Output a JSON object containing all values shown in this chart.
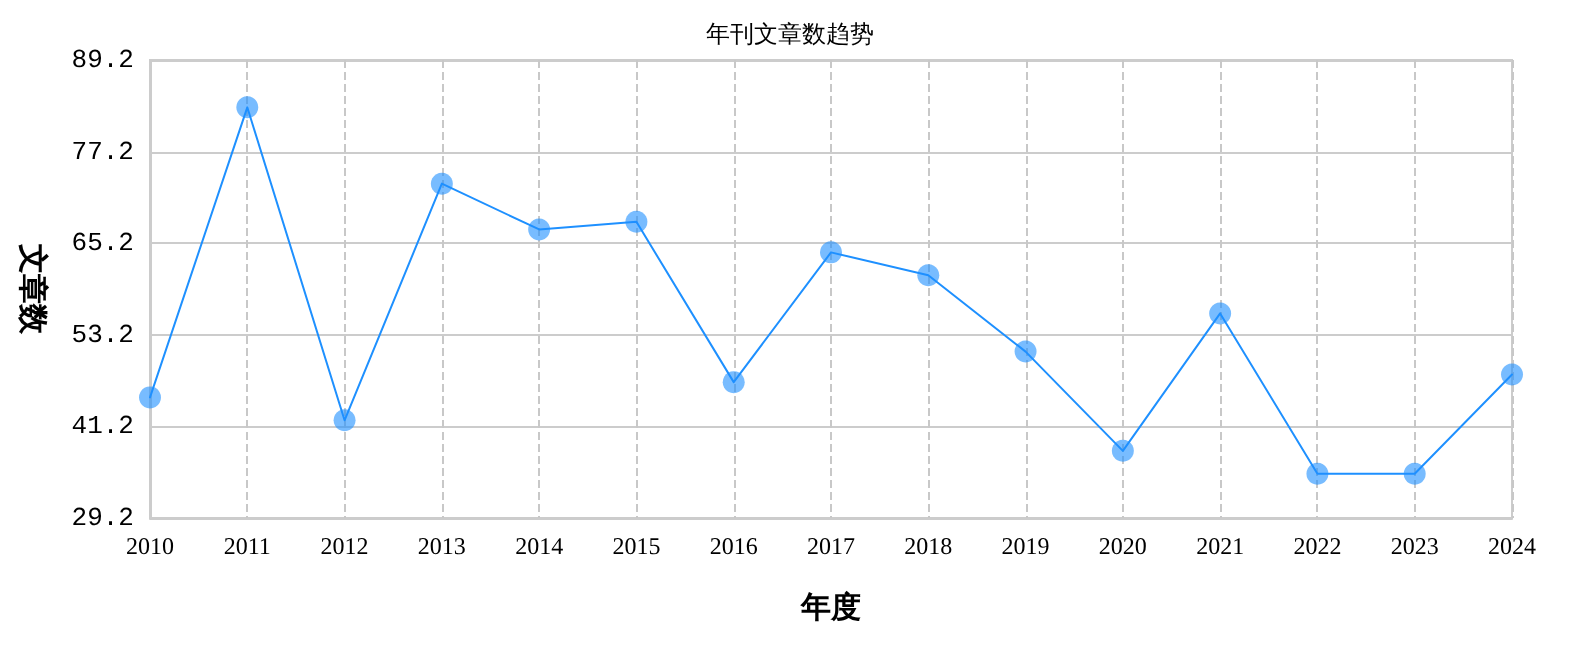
{
  "chart_data": {
    "type": "line",
    "title": "年刊文章数趋势",
    "xlabel": "年度",
    "ylabel": "文章数",
    "categories": [
      "2010",
      "2011",
      "2012",
      "2013",
      "2014",
      "2015",
      "2016",
      "2017",
      "2018",
      "2019",
      "2020",
      "2021",
      "2022",
      "2023",
      "2024"
    ],
    "series": [
      {
        "color": "#1e90ff",
        "values": [
          45,
          83,
          42,
          73,
          67,
          68,
          47,
          64,
          61,
          51,
          38,
          56,
          35,
          35,
          48
        ]
      }
    ],
    "ylim": [
      29.2,
      89.2
    ],
    "yticks": [
      29.2,
      41.2,
      53.2,
      65.2,
      77.2,
      89.2
    ],
    "grid": true,
    "marker": "circle",
    "line_style": "solid"
  }
}
